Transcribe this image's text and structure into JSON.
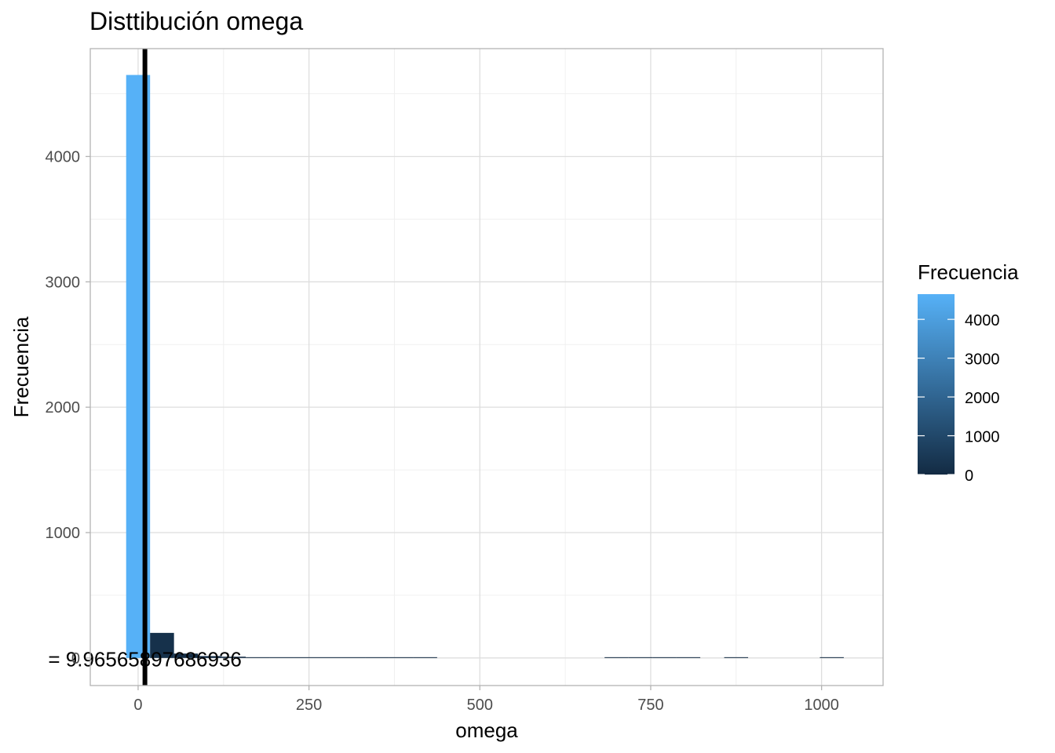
{
  "chart_data": {
    "type": "bar",
    "title": "Disttibución omega",
    "xlabel": "omega",
    "ylabel": "Frecuencia",
    "xlim": [
      -70,
      1090
    ],
    "ylim": [
      -220,
      4860
    ],
    "x_ticks": [
      0,
      250,
      500,
      750,
      1000
    ],
    "y_ticks": [
      0,
      1000,
      2000,
      3000,
      4000
    ],
    "x_tick_labels": [
      "0",
      "250",
      "500",
      "750",
      "1000"
    ],
    "y_tick_labels": [
      "0",
      "1000",
      "2000",
      "3000",
      "4000"
    ],
    "bin_width": 35,
    "bins": [
      {
        "x": 0,
        "count": 4650
      },
      {
        "x": 35,
        "count": 200
      },
      {
        "x": 70,
        "count": 35
      },
      {
        "x": 105,
        "count": 15
      },
      {
        "x": 140,
        "count": 10
      },
      {
        "x": 175,
        "count": 5
      },
      {
        "x": 210,
        "count": 4
      },
      {
        "x": 245,
        "count": 3
      },
      {
        "x": 280,
        "count": 2
      },
      {
        "x": 315,
        "count": 1
      },
      {
        "x": 350,
        "count": 1
      },
      {
        "x": 385,
        "count": 3
      },
      {
        "x": 420,
        "count": 1
      },
      {
        "x": 455,
        "count": 0
      },
      {
        "x": 490,
        "count": 0
      },
      {
        "x": 525,
        "count": 0
      },
      {
        "x": 560,
        "count": 0
      },
      {
        "x": 595,
        "count": 0
      },
      {
        "x": 630,
        "count": 0
      },
      {
        "x": 665,
        "count": 0
      },
      {
        "x": 700,
        "count": 1
      },
      {
        "x": 735,
        "count": 1
      },
      {
        "x": 770,
        "count": 1
      },
      {
        "x": 805,
        "count": 1
      },
      {
        "x": 840,
        "count": 0
      },
      {
        "x": 875,
        "count": 2
      },
      {
        "x": 910,
        "count": 0
      },
      {
        "x": 945,
        "count": 0
      },
      {
        "x": 980,
        "count": 0
      },
      {
        "x": 1015,
        "count": 1
      }
    ],
    "vline": {
      "x": 9.96565897686936,
      "color": "#000000"
    },
    "annotation": {
      "text": "= 9.96565897686936",
      "x": 9.96565897686936,
      "y": 0
    },
    "fill_scale": {
      "low_color": "#132B43",
      "high_color": "#56B1F7",
      "range": [
        0,
        4650
      ]
    },
    "legend": {
      "title": "Frecuencia",
      "labels": [
        "4000",
        "3000",
        "2000",
        "1000",
        "0"
      ],
      "values": [
        4000,
        3000,
        2000,
        1000,
        0
      ],
      "position": "right"
    },
    "grid": true,
    "theme": "light"
  }
}
